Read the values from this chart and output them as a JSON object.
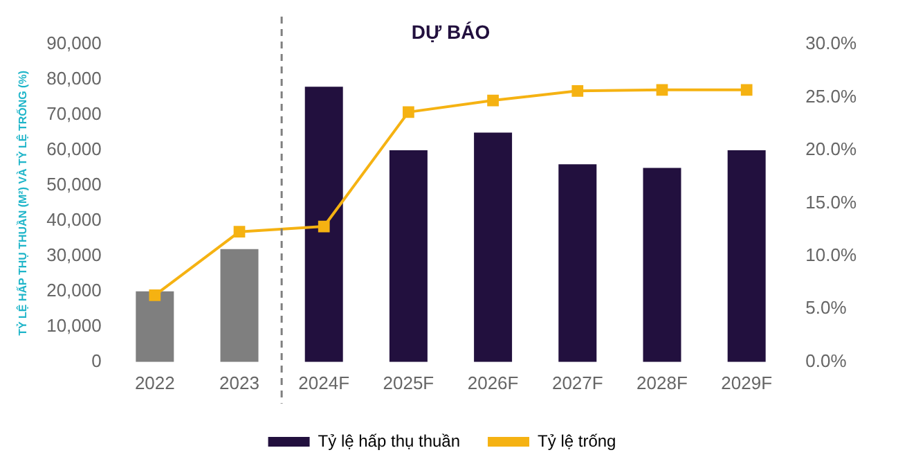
{
  "chart_data": {
    "type": "bar",
    "ylabel": "TỶ LỆ HẤP THỤ THUẦN (M²) VÀ TỶ LỆ TRỐNG (%)",
    "categories": [
      "2022",
      "2023",
      "2024F",
      "2025F",
      "2026F",
      "2027F",
      "2028F",
      "2029F"
    ],
    "series": [
      {
        "name": "Tỷ lệ hấp thụ thuần",
        "color": "#22103e",
        "colors": [
          "#7f7f7f",
          "#7f7f7f",
          "#22103e",
          "#22103e",
          "#22103e",
          "#22103e",
          "#22103e",
          "#22103e"
        ],
        "values": [
          20000,
          32000,
          78000,
          60000,
          65000,
          56000,
          55000,
          60000
        ]
      },
      {
        "name": "Tỷ lệ trống",
        "type": "line",
        "axis": "y2",
        "color": "#f5b212",
        "marker": "square",
        "values": [
          6.3,
          12.3,
          12.8,
          23.6,
          24.7,
          25.6,
          25.7,
          25.7
        ]
      }
    ],
    "ylim": [
      0,
      90000
    ],
    "yticks": [
      {
        "value": 0,
        "label": "0"
      },
      {
        "value": 10000,
        "label": "10,000"
      },
      {
        "value": 20000,
        "label": "20,000"
      },
      {
        "value": 30000,
        "label": "30,000"
      },
      {
        "value": 40000,
        "label": "40,000"
      },
      {
        "value": 50000,
        "label": "50,000"
      },
      {
        "value": 60000,
        "label": "60,000"
      },
      {
        "value": 70000,
        "label": "70,000"
      },
      {
        "value": 80000,
        "label": "80,000"
      },
      {
        "value": 90000,
        "label": "90,000"
      }
    ],
    "y2lim": [
      0,
      30
    ],
    "y2ticks": [
      {
        "value": 0,
        "label": "0.0%"
      },
      {
        "value": 5,
        "label": "5.0%"
      },
      {
        "value": 10,
        "label": "10.0%"
      },
      {
        "value": 15,
        "label": "15.0%"
      },
      {
        "value": 20,
        "label": "20.0%"
      },
      {
        "value": 25,
        "label": "25.0%"
      },
      {
        "value": 30,
        "label": "30.0%"
      }
    ],
    "annotations": [
      "DỰ BÁO"
    ],
    "grid": false,
    "legend": "bottom"
  }
}
